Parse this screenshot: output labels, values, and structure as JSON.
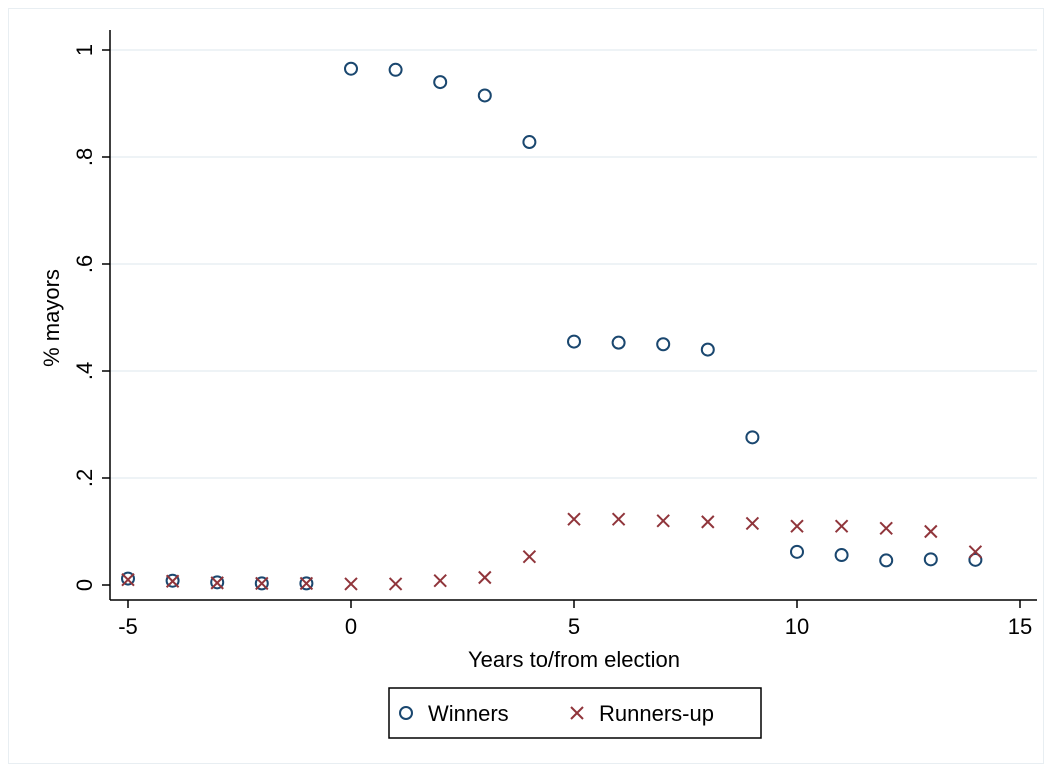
{
  "chart_data": {
    "type": "scatter",
    "title": "",
    "xlabel": "Years to/from election",
    "ylabel": "% mayors",
    "xlim": [
      -5,
      15
    ],
    "ylim": [
      0,
      1
    ],
    "xticks": [
      -5,
      0,
      5,
      10,
      15
    ],
    "xtick_labels": [
      "-5",
      "0",
      "5",
      "10",
      "15"
    ],
    "yticks": [
      0,
      0.2,
      0.4,
      0.6,
      0.8,
      1
    ],
    "ytick_labels": [
      "0",
      ".2",
      ".4",
      ".6",
      ".8",
      "1"
    ],
    "grid": "horizontal",
    "legend_position": "bottom",
    "series": [
      {
        "name": "Winners",
        "marker": "hollow-circle",
        "color": "#1a476f",
        "x": [
          -5,
          -4,
          -3,
          -2,
          -1,
          0,
          1,
          2,
          3,
          4,
          5,
          6,
          7,
          8,
          9,
          10,
          11,
          12,
          13,
          14
        ],
        "y": [
          0.012,
          0.008,
          0.005,
          0.003,
          0.003,
          0.965,
          0.963,
          0.94,
          0.915,
          0.828,
          0.455,
          0.453,
          0.45,
          0.44,
          0.276,
          0.062,
          0.056,
          0.046,
          0.048,
          0.047
        ]
      },
      {
        "name": "Runners-up",
        "marker": "x",
        "color": "#90353b",
        "x": [
          -5,
          -4,
          -3,
          -2,
          -1,
          0,
          1,
          2,
          3,
          4,
          5,
          6,
          7,
          8,
          9,
          10,
          11,
          12,
          13,
          14
        ],
        "y": [
          0.01,
          0.007,
          0.004,
          0.003,
          0.003,
          0.002,
          0.002,
          0.008,
          0.014,
          0.053,
          0.123,
          0.123,
          0.12,
          0.118,
          0.115,
          0.11,
          0.11,
          0.106,
          0.1,
          0.062
        ]
      }
    ]
  }
}
